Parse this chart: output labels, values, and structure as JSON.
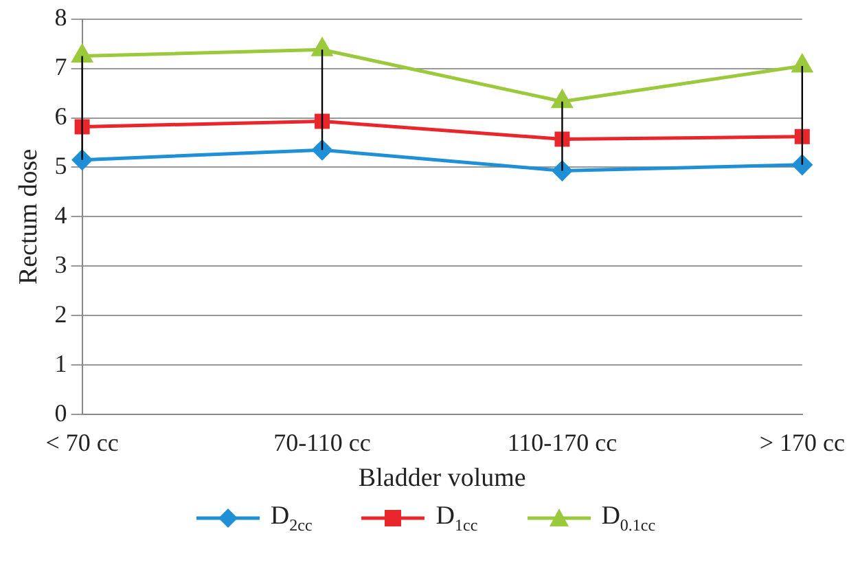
{
  "chart_data": {
    "type": "line",
    "xlabel": "Bladder volume",
    "ylabel": "Rectum dose",
    "categories": [
      "< 70 cc",
      "70-110 cc",
      "110-170 cc",
      "> 170 cc"
    ],
    "series": [
      {
        "name": "D$_{2cc}$",
        "color": "#1f8fd6",
        "marker": "diamond",
        "values": [
          5.15,
          5.35,
          4.93,
          5.05
        ]
      },
      {
        "name": "D$_{1cc}$",
        "color": "#e8262b",
        "marker": "square",
        "values": [
          5.82,
          5.93,
          5.57,
          5.62
        ],
        "errors": [
          [
            5.15,
            7.25
          ],
          [
            5.35,
            7.38
          ],
          [
            4.93,
            6.33
          ],
          [
            5.05,
            7.05
          ]
        ]
      },
      {
        "name": "D$_{0.1cc}$",
        "color": "#9bc93c",
        "marker": "triangle",
        "values": [
          7.25,
          7.38,
          6.33,
          7.05
        ]
      }
    ],
    "ylim": [
      0,
      8
    ],
    "yticks": [
      0,
      1,
      2,
      3,
      4,
      5,
      6,
      7,
      8
    ],
    "grid": "y",
    "legend": "bottom"
  }
}
